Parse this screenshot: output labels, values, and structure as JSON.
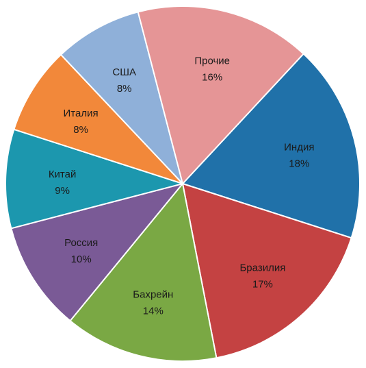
{
  "chart_data": {
    "type": "pie",
    "title": "",
    "start_angle_deg": 43,
    "direction": "clockwise",
    "slices": [
      {
        "label": "Индия",
        "value": 18,
        "display": "18%",
        "color": "#2071A9",
        "label_color": "#1a1a1a"
      },
      {
        "label": "Бразилия",
        "value": 17,
        "display": "17%",
        "color": "#C44242",
        "label_color": "#1a1a1a"
      },
      {
        "label": "Бахрейн",
        "value": 14,
        "display": "14%",
        "color": "#7AA844",
        "label_color": "#1a1a1a"
      },
      {
        "label": "Россия",
        "value": 10,
        "display": "10%",
        "color": "#7A5A96",
        "label_color": "#1a1a1a"
      },
      {
        "label": "Китай",
        "value": 9,
        "display": "9%",
        "color": "#1C97AE",
        "label_color": "#1a1a1a"
      },
      {
        "label": "Италия",
        "value": 8,
        "display": "8%",
        "color": "#F2883A",
        "label_color": "#1a1a1a"
      },
      {
        "label": "США",
        "value": 8,
        "display": "8%",
        "color": "#8FB0D9",
        "label_color": "#1a1a1a"
      },
      {
        "label": "Прочие",
        "value": 16,
        "display": "16%",
        "color": "#E59596",
        "label_color": "#1a1a1a"
      }
    ]
  }
}
